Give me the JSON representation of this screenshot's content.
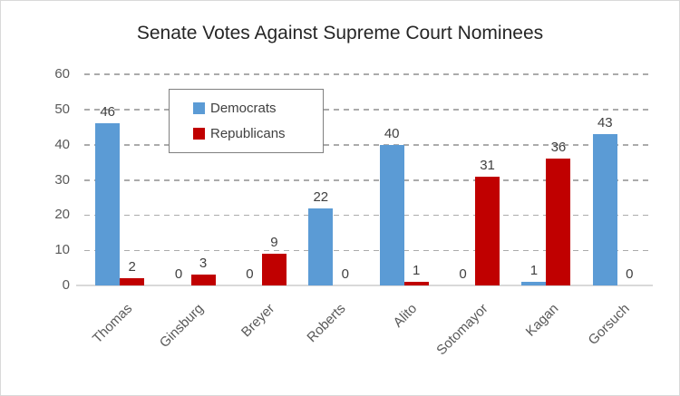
{
  "chart_data": {
    "type": "bar",
    "title": "Senate Votes Against Supreme Court Nominees",
    "categories": [
      "Thomas",
      "Ginsburg",
      "Breyer",
      "Roberts",
      "Alito",
      "Sotomayor",
      "Kagan",
      "Gorsuch"
    ],
    "series": [
      {
        "name": "Democrats",
        "color": "#5B9BD5",
        "values": [
          46,
          0,
          0,
          22,
          40,
          0,
          1,
          43
        ]
      },
      {
        "name": "Republicans",
        "color": "#C00000",
        "values": [
          2,
          3,
          9,
          0,
          1,
          31,
          36,
          0
        ]
      }
    ],
    "ylim": [
      0,
      60
    ],
    "yticks": [
      0,
      10,
      20,
      30,
      40,
      50,
      60
    ],
    "xlabel": "",
    "ylabel": "",
    "grid": "horizontal-dashed",
    "legend_position": "inside-top-left",
    "data_labels": true
  },
  "colors": {
    "democrats": "#5B9BD5",
    "republicans": "#C00000",
    "gridline": "#ABABAB",
    "axis_line": "#D9D9D9",
    "tick_label": "#595959",
    "data_label": "#404040",
    "title": "#262626",
    "legend_border": "#808080",
    "frame_border": "#D9D9D9",
    "background": "#FFFFFF"
  }
}
